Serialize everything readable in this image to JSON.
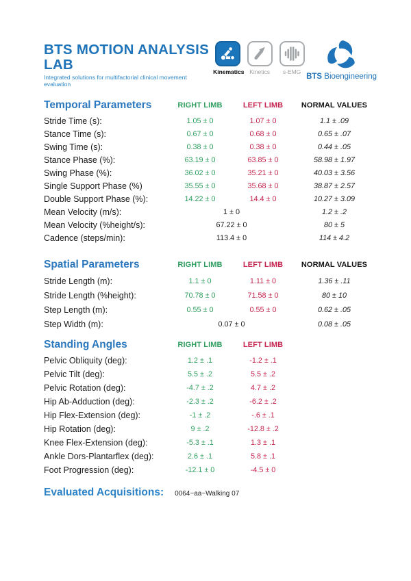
{
  "header": {
    "title": "BTS MOTION ANALYSIS LAB",
    "subtitle": "Integrated solutions for multifactorial clinical movement evaluation",
    "tabs": [
      {
        "label": "Kinematics",
        "icon": "kinematics-linkage-icon",
        "active": true
      },
      {
        "label": "Kinetics",
        "icon": "kinetics-arrow-icon",
        "active": false
      },
      {
        "label": "s-EMG",
        "icon": "semg-waveform-icon",
        "active": false
      }
    ],
    "logo": {
      "bold": "BTS",
      "text": " Bioengineering"
    }
  },
  "columns": {
    "right": "RIGHT LIMB",
    "left": "LEFT LIMB",
    "normal": "NORMAL VALUES"
  },
  "sections": [
    {
      "title": "Temporal Parameters",
      "has_normal_column": true,
      "rows": [
        {
          "label": "Stride Time (s):",
          "right": "1.05 ± 0",
          "left": "1.07 ± 0",
          "normal": "1.1 ± .09"
        },
        {
          "label": "Stance Time (s):",
          "right": "0.67 ± 0",
          "left": "0.68 ± 0",
          "normal": "0.65 ± .07"
        },
        {
          "label": "Swing Time (s):",
          "right": "0.38 ± 0",
          "left": "0.38 ± 0",
          "normal": "0.44 ± .05"
        },
        {
          "label": "Stance Phase (%):",
          "right": "63.19 ± 0",
          "left": "63.85 ± 0",
          "normal": "58.98 ± 1.97"
        },
        {
          "label": "Swing Phase (%):",
          "right": "36.02 ± 0",
          "left": "35.21 ± 0",
          "normal": "40.03 ± 3.56"
        },
        {
          "label": "Single Support Phase (%)",
          "right": "35.55 ± 0",
          "left": "35.68 ± 0",
          "normal": "38.87 ± 2.57"
        },
        {
          "label": "Double Support Phase (%):",
          "right": "14.22 ± 0",
          "left": "14.4 ± 0",
          "normal": "10.27 ± 3.09"
        },
        {
          "label": "Mean Velocity (m/s):",
          "merged": "1 ± 0",
          "normal": "1.2 ± .2"
        },
        {
          "label": "Mean Velocity (%height/s):",
          "merged": "67.22 ± 0",
          "normal": "80 ± 5"
        },
        {
          "label": "Cadence (steps/min):",
          "merged": "113.4 ± 0",
          "normal": "114 ± 4.2"
        }
      ]
    },
    {
      "title": "Spatial Parameters",
      "has_normal_column": true,
      "rows": [
        {
          "label": "Stride Length (m):",
          "right": "1.1 ± 0",
          "left": "1.11 ± 0",
          "normal": "1.36 ± .11"
        },
        {
          "label": "Stride Length (%height):",
          "right": "70.78 ± 0",
          "left": "71.58 ± 0",
          "normal": "80 ± 10"
        },
        {
          "label": "Step Length (m):",
          "right": "0.55 ± 0",
          "left": "0.55 ± 0",
          "normal": "0.62 ± .05"
        },
        {
          "label": "Step Width (m):",
          "merged": "0.07 ± 0",
          "normal": "0.08 ± .05"
        }
      ]
    },
    {
      "title": "Standing Angles",
      "has_normal_column": false,
      "rows": [
        {
          "label": "Pelvic Obliquity (deg):",
          "right": "1.2 ± .1",
          "left": "-1.2 ± .1"
        },
        {
          "label": "Pelvic Tilt (deg):",
          "right": "5.5 ± .2",
          "left": "5.5 ± .2"
        },
        {
          "label": "Pelvic Rotation (deg):",
          "right": "-4.7 ± .2",
          "left": "4.7 ± .2"
        },
        {
          "label": "Hip Ab-Adduction (deg):",
          "right": "-2.3 ± .2",
          "left": "-6.2 ± .2"
        },
        {
          "label": "Hip Flex-Extension (deg):",
          "right": "-1 ± .2",
          "left": "-.6 ± .1"
        },
        {
          "label": "Hip Rotation (deg):",
          "right": "9 ± .2",
          "left": "-12.8 ± .2"
        },
        {
          "label": "Knee Flex-Extension (deg):",
          "right": "-5.3 ± .1",
          "left": "1.3 ± .1"
        },
        {
          "label": "Ankle Dors-Plantarflex (deg):",
          "right": "2.6 ± .1",
          "left": "5.8 ± .1"
        },
        {
          "label": "Foot Progression (deg):",
          "right": "-12.1 ± 0",
          "left": "-4.5 ± 0"
        }
      ]
    }
  ],
  "footer": {
    "label": "Evaluated Acquisitions:",
    "value": "0064~aa~Walking 07"
  },
  "colors": {
    "title_blue": "#1e73b9",
    "subtitle_blue": "#2b86c6",
    "section_blue": "#2b78be",
    "right_limb_green": "#2e9e5e",
    "left_limb_red": "#c4234d",
    "tab_active_blue": "#1b75bb",
    "inactive_gray": "#9fa3a6"
  }
}
